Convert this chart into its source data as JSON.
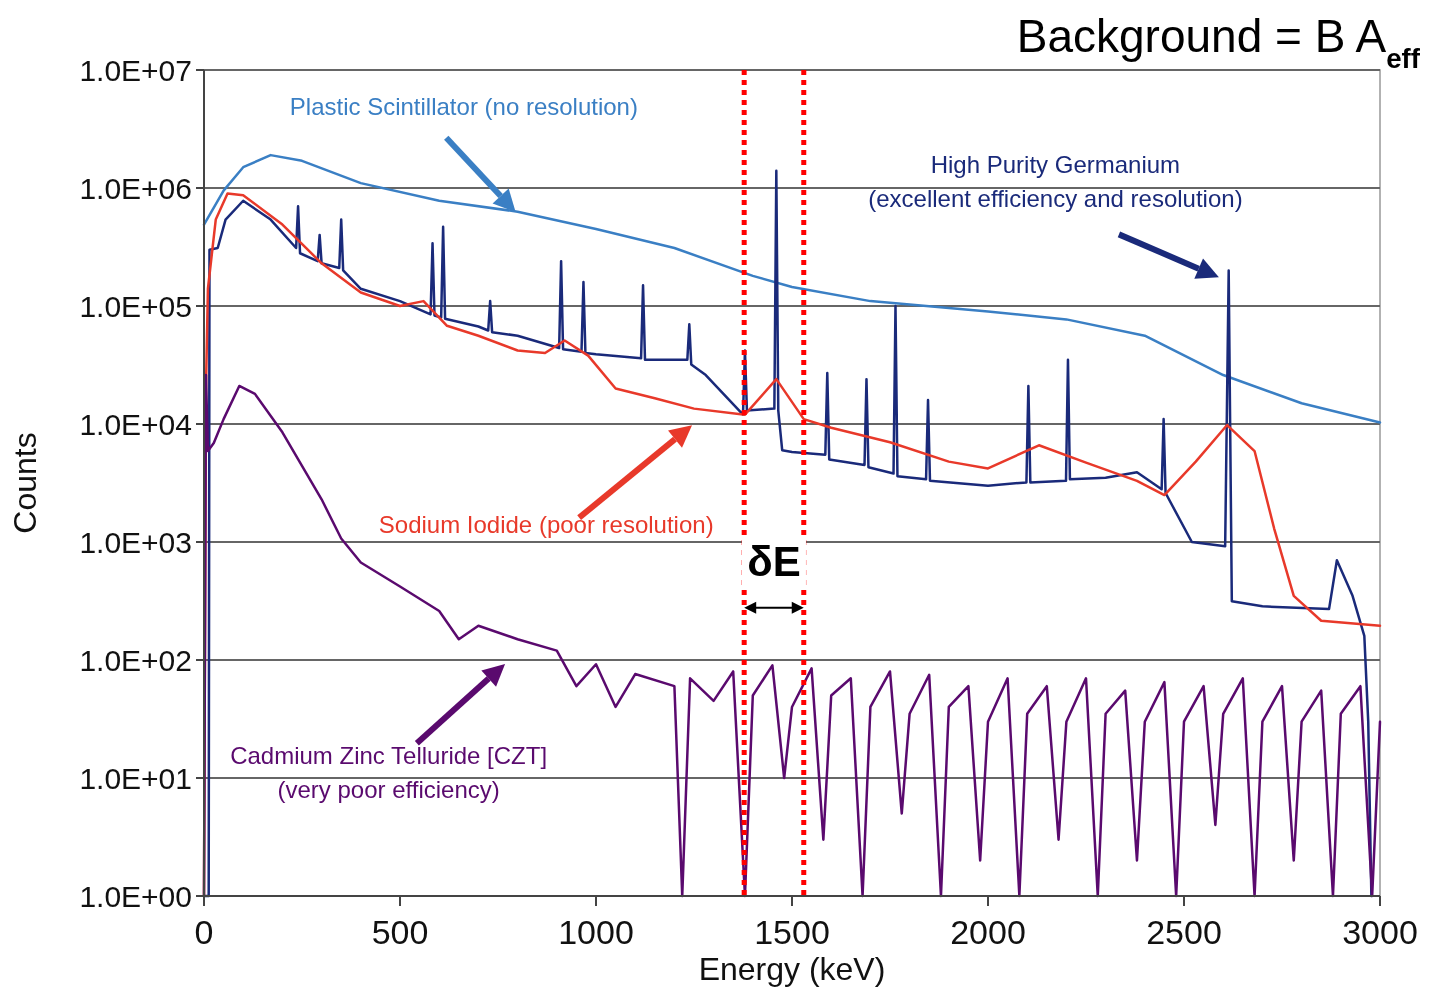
{
  "chart_data": {
    "type": "line",
    "title": "Background = B A$_{eff}$",
    "xlabel": "Energy (keV)",
    "ylabel": "Counts",
    "log": "y",
    "grid": "y",
    "marker": "none",
    "line_style": "solid",
    "xlim": [
      0,
      3000
    ],
    "xticks": [
      0,
      500,
      1000,
      1500,
      2000,
      2500,
      3000
    ],
    "ylim": [
      1,
      10000000
    ],
    "yticks": [
      {
        "value": 1,
        "label": "1.0E+00"
      },
      {
        "value": 10,
        "label": "1.0E+01"
      },
      {
        "value": 100,
        "label": "1.0E+02"
      },
      {
        "value": 1000,
        "label": "1.0E+03"
      },
      {
        "value": 10000,
        "label": "1.0E+04"
      },
      {
        "value": 100000,
        "label": "1.0E+05"
      },
      {
        "value": 1000000,
        "label": "1.0E+06"
      },
      {
        "value": 10000000,
        "label": "1.0E+07"
      }
    ],
    "ref_lines": [
      {
        "axis": "x",
        "value": 1378,
        "color": "#ff0000",
        "line_style": "dotted"
      },
      {
        "axis": "x",
        "value": 1530,
        "color": "#ff0000",
        "line_style": "dotted"
      }
    ],
    "annotations": [
      "δE"
    ],
    "series": [
      {
        "name": "Plastic Scintillator (no resolution)",
        "color": "#3a7fc4",
        "x": [
          0,
          50,
          100,
          170,
          250,
          400,
          600,
          800,
          1000,
          1200,
          1400,
          1500,
          1700,
          2000,
          2200,
          2400,
          2600,
          2800,
          3000
        ],
        "values": [
          490000,
          950000,
          1500000,
          1900000,
          1700000,
          1100000,
          780000,
          630000,
          450000,
          310000,
          180000,
          145000,
          110000,
          90000,
          77000,
          56000,
          26000,
          15000,
          10300
        ]
      },
      {
        "name": "High Purity Germanium (excellent efficiency and resolution)",
        "color": "#1a2a7a",
        "x": [
          0,
          12,
          14,
          35,
          55,
          100,
          170,
          235,
          240,
          245,
          290,
          295,
          300,
          345,
          350,
          355,
          400,
          500,
          578,
          583,
          588,
          605,
          610,
          615,
          700,
          725,
          730,
          735,
          800,
          906,
          911,
          916,
          963,
          968,
          973,
          1000,
          1115,
          1120,
          1125,
          1200,
          1233,
          1238,
          1243,
          1280,
          1375,
          1380,
          1385,
          1455,
          1460,
          1465,
          1475,
          1500,
          1585,
          1590,
          1595,
          1685,
          1690,
          1695,
          1759,
          1764,
          1769,
          1842,
          1847,
          1852,
          2000,
          2098,
          2103,
          2108,
          2199,
          2204,
          2209,
          2300,
          2380,
          2443,
          2448,
          2453,
          2520,
          2605,
          2614,
          2622,
          2700,
          2870,
          2890,
          2930,
          2960,
          2970,
          2978
        ],
        "values": [
          1,
          1,
          300000,
          310000,
          540000,
          780000,
          540000,
          310000,
          700000,
          280000,
          240000,
          400000,
          230000,
          210000,
          540000,
          200000,
          140000,
          110000,
          85000,
          340000,
          83000,
          80000,
          470000,
          78000,
          67000,
          62000,
          110000,
          60000,
          56000,
          44000,
          240000,
          43000,
          41000,
          160000,
          40000,
          39000,
          36000,
          150000,
          35000,
          35000,
          35000,
          70000,
          32000,
          26000,
          12000,
          42000,
          13000,
          13500,
          1400000,
          13000,
          6000,
          5800,
          5500,
          27000,
          5000,
          4500,
          24000,
          4300,
          3800,
          100000,
          3600,
          3400,
          16000,
          3300,
          3000,
          3200,
          21000,
          3200,
          3300,
          35000,
          3400,
          3500,
          3900,
          2800,
          11000,
          2600,
          1000,
          920,
          200000,
          315,
          285,
          270,
          700,
          350,
          160,
          30,
          1
        ]
      },
      {
        "name": "Sodium Iodide (poor resolution)",
        "color": "#e8392a",
        "x": [
          0,
          5,
          10,
          30,
          60,
          100,
          200,
          300,
          400,
          500,
          560,
          620,
          700,
          800,
          870,
          920,
          980,
          1050,
          1150,
          1250,
          1380,
          1460,
          1530,
          1600,
          1750,
          1900,
          2000,
          2130,
          2250,
          2380,
          2450,
          2530,
          2610,
          2680,
          2730,
          2780,
          2850,
          3000
        ],
        "values": [
          1,
          20000,
          140000,
          540000,
          900000,
          870000,
          490000,
          230000,
          130000,
          100000,
          110000,
          68000,
          56000,
          42000,
          40000,
          51000,
          38000,
          20000,
          16500,
          13500,
          12000,
          24000,
          11000,
          9300,
          7000,
          4800,
          4200,
          6600,
          4700,
          3300,
          2500,
          4800,
          9800,
          5900,
          1300,
          350,
          215,
          195
        ]
      },
      {
        "name": "Cadmium Zinc Telluride [CZT] (very poor efficiency)",
        "color": "#5a0a6e",
        "x": [
          0,
          5,
          10,
          25,
          50,
          90,
          130,
          200,
          300,
          350,
          400,
          500,
          600,
          650,
          700,
          800,
          900,
          950,
          1000,
          1050,
          1100,
          1200,
          1220,
          1240,
          1300,
          1350,
          1380,
          1400,
          1450,
          1480,
          1500,
          1550,
          1580,
          1600,
          1650,
          1680,
          1700,
          1750,
          1780,
          1800,
          1850,
          1880,
          1900,
          1950,
          1980,
          2000,
          2050,
          2080,
          2100,
          2150,
          2180,
          2200,
          2250,
          2280,
          2300,
          2350,
          2380,
          2400,
          2450,
          2480,
          2500,
          2550,
          2580,
          2600,
          2650,
          2680,
          2700,
          2750,
          2780,
          2800,
          2850,
          2880,
          2900,
          2950,
          2980,
          3000
        ],
        "values": [
          1,
          26000,
          5900,
          6900,
          11000,
          21000,
          18000,
          8500,
          2300,
          1070,
          670,
          420,
          260,
          150,
          195,
          150,
          120,
          60,
          92,
          40,
          76,
          60,
          1,
          70,
          45,
          80,
          1,
          50,
          90,
          10,
          40,
          85,
          3,
          50,
          70,
          1,
          40,
          80,
          5,
          35,
          75,
          1,
          40,
          60,
          2,
          30,
          70,
          1,
          35,
          60,
          3,
          30,
          70,
          1,
          35,
          55,
          2,
          30,
          65,
          1,
          30,
          60,
          4,
          35,
          70,
          1,
          30,
          60,
          2,
          30,
          55,
          1,
          35,
          60,
          1,
          30
        ]
      }
    ]
  }
}
